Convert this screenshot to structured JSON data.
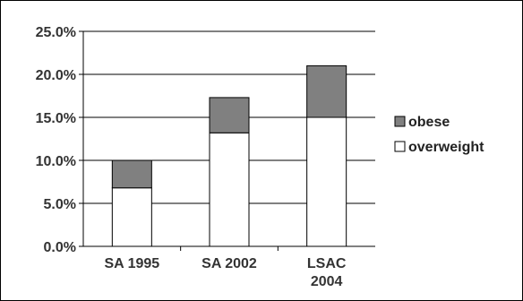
{
  "chart_data": {
    "type": "bar",
    "stacked": true,
    "categories": [
      [
        "SA 1995"
      ],
      [
        "SA 2002"
      ],
      [
        "LSAC",
        "2004"
      ]
    ],
    "series": [
      {
        "name": "overweight",
        "values": [
          6.8,
          13.2,
          15.0
        ],
        "color": "#ffffff"
      },
      {
        "name": "obese",
        "values": [
          3.2,
          4.1,
          6.0
        ],
        "color": "#808080"
      }
    ],
    "legend_order": [
      "obese",
      "overweight"
    ],
    "y_tick_labels": [
      "0.0%",
      "5.0%",
      "10.0%",
      "15.0%",
      "20.0%",
      "25.0%"
    ],
    "ylim": [
      0,
      25
    ],
    "y_tick_step": 5,
    "grid": true,
    "legend_position": "right",
    "title": "",
    "xlabel": "",
    "ylabel": "",
    "colors": {
      "bar_outline": "#000000",
      "gridline": "#000000",
      "text": "#333333",
      "background": "#ffffff"
    }
  }
}
